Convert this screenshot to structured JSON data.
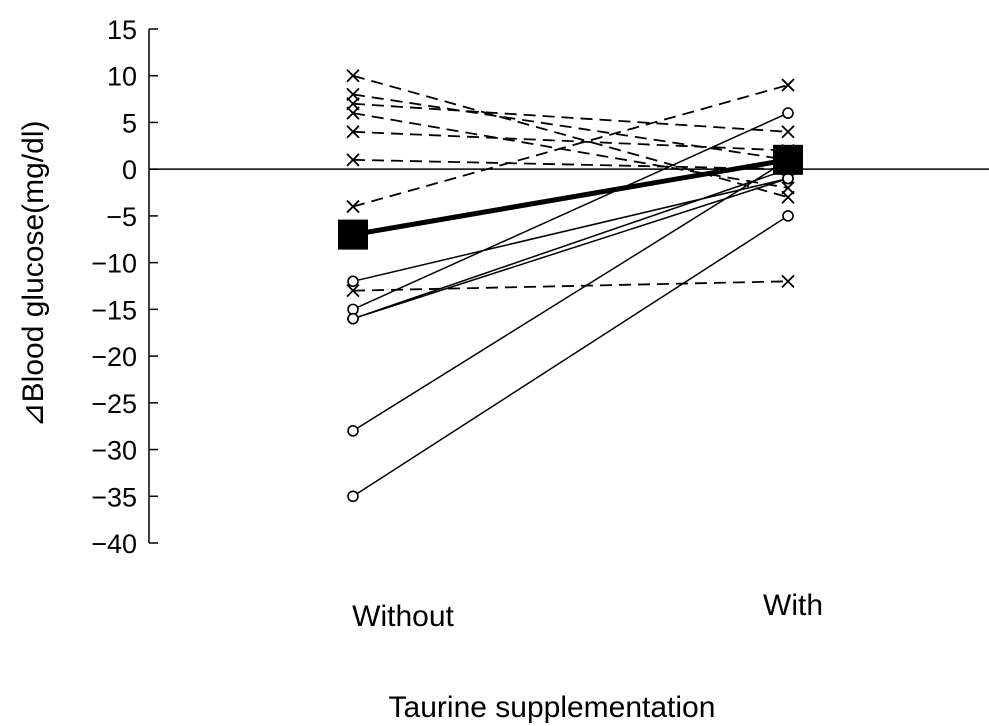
{
  "chart_data": {
    "type": "line",
    "xlabel": "Taurine supplementation",
    "ylabel": "⊿Blood glucose(mg/dl)",
    "categories": [
      "Without",
      "With"
    ],
    "ylim": [
      -40,
      15
    ],
    "yticks": [
      15,
      10,
      5,
      0,
      -5,
      -10,
      -15,
      -20,
      -25,
      -30,
      -35,
      -40
    ],
    "grid": false,
    "zero_line": true,
    "series": [
      {
        "marker": "x",
        "line": "dashed",
        "values": [
          10,
          -3
        ]
      },
      {
        "marker": "x",
        "line": "dashed",
        "values": [
          8,
          1
        ]
      },
      {
        "marker": "x",
        "line": "dashed",
        "values": [
          7,
          4
        ]
      },
      {
        "marker": "x",
        "line": "dashed",
        "values": [
          6,
          -2
        ]
      },
      {
        "marker": "x",
        "line": "dashed",
        "values": [
          4,
          2
        ]
      },
      {
        "marker": "x",
        "line": "dashed",
        "values": [
          1,
          0
        ]
      },
      {
        "marker": "x",
        "line": "dashed",
        "values": [
          -4,
          9
        ]
      },
      {
        "marker": "x",
        "line": "dashed",
        "values": [
          -13,
          -12
        ]
      },
      {
        "marker": "o",
        "line": "solid",
        "values": [
          -12,
          -1
        ]
      },
      {
        "marker": "o",
        "line": "solid",
        "values": [
          -15,
          6
        ]
      },
      {
        "marker": "o",
        "line": "solid",
        "values": [
          -16,
          0
        ]
      },
      {
        "marker": "o",
        "line": "solid",
        "values": [
          -16,
          -1
        ]
      },
      {
        "marker": "o",
        "line": "solid",
        "values": [
          -28,
          1
        ]
      },
      {
        "marker": "o",
        "line": "solid",
        "values": [
          -35,
          -5
        ]
      },
      {
        "marker": "square",
        "line": "bold",
        "values": [
          -7,
          1
        ]
      }
    ]
  }
}
